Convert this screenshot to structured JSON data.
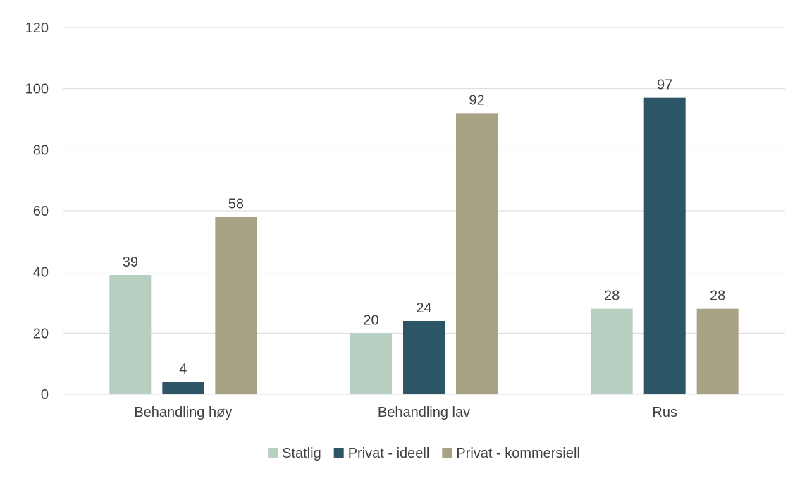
{
  "chart_data": {
    "type": "bar",
    "title": "",
    "xlabel": "",
    "ylabel": "",
    "ylim": [
      0,
      120
    ],
    "yticks": [
      0,
      20,
      40,
      60,
      80,
      100,
      120
    ],
    "grid": true,
    "legend_position": "bottom",
    "categories": [
      "Behandling høy",
      "Behandling lav",
      "Rus"
    ],
    "series": [
      {
        "name": "Statlig",
        "color": "#b7cfc0",
        "values": [
          39,
          20,
          28
        ]
      },
      {
        "name": "Privat - ideell",
        "color": "#2c5566",
        "values": [
          4,
          24,
          97
        ]
      },
      {
        "name": "Privat - kommersiell",
        "color": "#a8a285",
        "values": [
          58,
          92,
          28
        ]
      }
    ]
  }
}
